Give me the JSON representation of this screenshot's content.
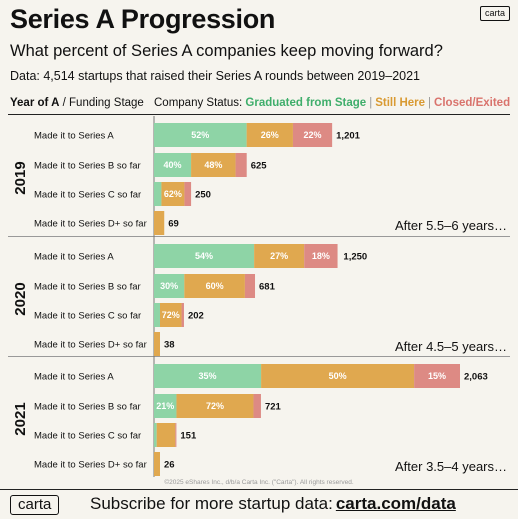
{
  "header": {
    "title": "Series A Progression",
    "subtitle": "What percent of Series A companies keep moving forward?",
    "dataline": "Data: 4,514 startups that raised their Series A rounds between 2019–2021",
    "brand": "carta"
  },
  "legend": {
    "left_bold": "Year of A",
    "left_rest": " / Funding Stage",
    "status_label": "Company Status: ",
    "graduated": "Graduated from Stage",
    "still_here": "Still Here",
    "closed": "Closed/Exited",
    "separator": "|"
  },
  "colors": {
    "graduated": "#8ed4a6",
    "still_here": "#e0a84f",
    "closed": "#dd8a84"
  },
  "chart_data": {
    "type": "bar",
    "orientation": "horizontal",
    "stacked": true,
    "series_names": [
      "Graduated from Stage",
      "Still Here",
      "Closed/Exited"
    ],
    "groups": [
      {
        "year": "2019",
        "note": "After 5.5–6 years…",
        "rows": [
          {
            "label": "Made it to Series A",
            "total": 1201,
            "total_label": "1,201",
            "pct": [
              52,
              26,
              22
            ],
            "pct_labels": [
              "52%",
              "26%",
              "22%"
            ]
          },
          {
            "label": "Made it to Series B so far",
            "total": 625,
            "total_label": "625",
            "pct": [
              40,
              48,
              12
            ],
            "pct_labels": [
              "40%",
              "48%",
              ""
            ]
          },
          {
            "label": "Made it to Series C so far",
            "total": 250,
            "total_label": "250",
            "pct": [
              20,
              62,
              18
            ],
            "pct_labels": [
              "",
              "62%",
              ""
            ]
          },
          {
            "label": "Made it to Series D+ so far",
            "total": 69,
            "total_label": "69",
            "pct": [
              0,
              100,
              0
            ],
            "pct_labels": [
              "",
              "",
              ""
            ]
          }
        ]
      },
      {
        "year": "2020",
        "note": "After 4.5–5 years…",
        "rows": [
          {
            "label": "Made it to Series A",
            "total": 1250,
            "total_label": "1,250",
            "pct": [
              54,
              27,
              18
            ],
            "pct_labels": [
              "54%",
              "27%",
              "18%"
            ]
          },
          {
            "label": "Made it to Series B so far",
            "total": 681,
            "total_label": "681",
            "pct": [
              30,
              60,
              10
            ],
            "pct_labels": [
              "30%",
              "60%",
              ""
            ]
          },
          {
            "label": "Made it to Series C so far",
            "total": 202,
            "total_label": "202",
            "pct": [
              20,
              72,
              8
            ],
            "pct_labels": [
              "",
              "72%",
              ""
            ]
          },
          {
            "label": "Made it to Series D+ so far",
            "total": 38,
            "total_label": "38",
            "pct": [
              0,
              100,
              0
            ],
            "pct_labels": [
              "",
              "",
              ""
            ]
          }
        ]
      },
      {
        "year": "2021",
        "note": "After 3.5–4 years…",
        "rows": [
          {
            "label": "Made it to Series A",
            "total": 2063,
            "total_label": "2,063",
            "pct": [
              35,
              50,
              15
            ],
            "pct_labels": [
              "35%",
              "50%",
              "15%"
            ]
          },
          {
            "label": "Made it to Series B so far",
            "total": 721,
            "total_label": "721",
            "pct": [
              21,
              72,
              7
            ],
            "pct_labels": [
              "21%",
              "72%",
              ""
            ]
          },
          {
            "label": "Made it to Series C so far",
            "total": 151,
            "total_label": "151",
            "pct": [
              12,
              83,
              5
            ],
            "pct_labels": [
              "",
              "",
              ""
            ]
          },
          {
            "label": "Made it to Series D+ so far",
            "total": 26,
            "total_label": "26",
            "pct": [
              0,
              100,
              0
            ],
            "pct_labels": [
              "",
              "",
              ""
            ]
          }
        ]
      }
    ]
  },
  "copyright": "©2025 eShares Inc., d/b/a Carta Inc. (\"Carta\"). All rights reserved.",
  "footer": {
    "brand": "carta",
    "text": "Subscribe for more startup data:",
    "url": "carta.com/data"
  }
}
